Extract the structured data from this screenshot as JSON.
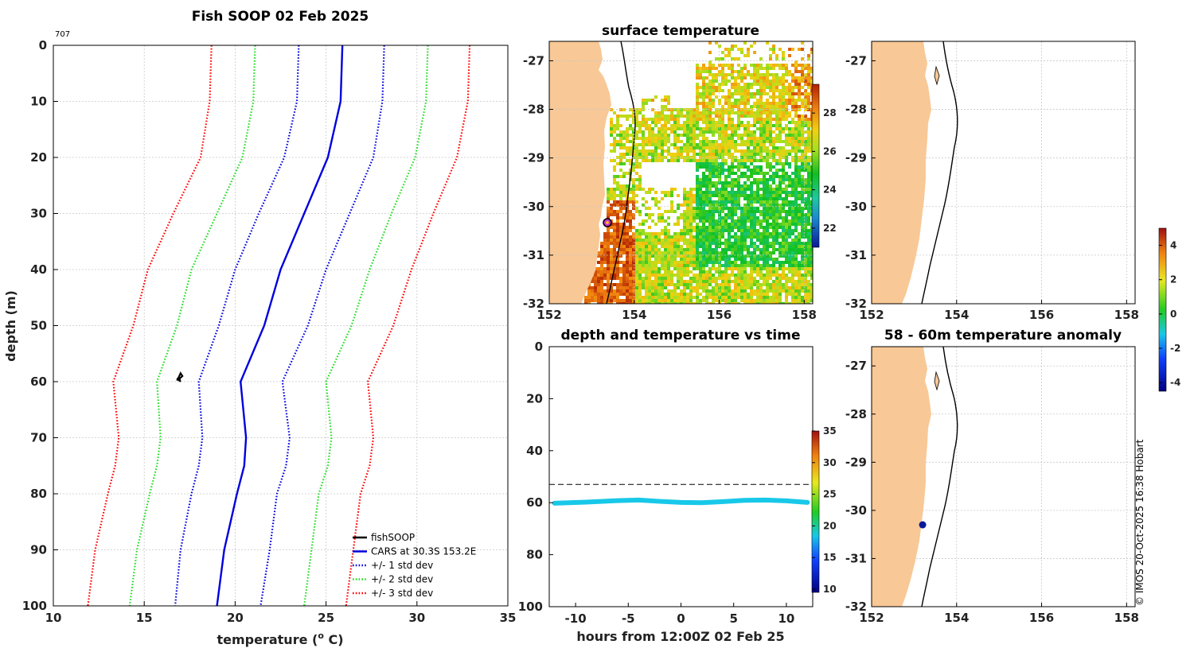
{
  "title": "Fish SOOP 02 Feb 2025",
  "profile_id": "707",
  "credit": "© IMOS 20-Oct-2025 16:38 Hobart",
  "colors": {
    "red": "#ff0000",
    "green": "#22dd22",
    "blue": "#0000dd",
    "black": "#000000",
    "cyan": "#18c8e8",
    "land": "#f8c896",
    "marker": "#cc33cc"
  },
  "chart_data": [
    {
      "id": "profile",
      "type": "line",
      "xlabel": "temperature (",
      "xlabel_sup": "o",
      "xlabel_end": " C)",
      "ylabel": "depth (m)",
      "xlim": [
        10,
        35
      ],
      "ylim": [
        0,
        100
      ],
      "xticks": [
        "10",
        "15",
        "20",
        "25",
        "30",
        "35"
      ],
      "yticks": [
        "0",
        "10",
        "20",
        "30",
        "40",
        "50",
        "60",
        "70",
        "80",
        "90",
        "100"
      ],
      "depths": [
        0,
        10,
        20,
        30,
        40,
        50,
        60,
        70,
        75,
        80,
        90,
        100
      ],
      "series": [
        {
          "name": "CARS at 30.3S 153.2E",
          "style": "solid",
          "color": "#0000dd",
          "values": [
            25.9,
            25.8,
            25.1,
            23.8,
            22.5,
            21.6,
            20.3,
            20.6,
            20.5,
            20.1,
            19.4,
            19.0
          ]
        },
        {
          "name": "+/- 1 std dev",
          "style": "dotted",
          "color": "#0000dd",
          "values": [
            28.2,
            28.1,
            27.6,
            26.3,
            25.0,
            24.0,
            22.6,
            23.0,
            22.8,
            22.3,
            21.9,
            21.4
          ]
        },
        {
          "name": "+/- 1 std dev",
          "style": "dotted",
          "color": "#0000dd",
          "values": [
            23.5,
            23.4,
            22.7,
            21.3,
            20.0,
            19.1,
            18.0,
            18.2,
            18.0,
            17.6,
            17.0,
            16.7
          ]
        },
        {
          "name": "+/- 2 std dev",
          "style": "dotted",
          "color": "#22dd22",
          "values": [
            30.6,
            30.5,
            29.9,
            28.6,
            27.4,
            26.4,
            25.0,
            25.3,
            25.1,
            24.6,
            24.2,
            23.8
          ]
        },
        {
          "name": "+/- 2 std dev",
          "style": "dotted",
          "color": "#22dd22",
          "values": [
            21.1,
            21.0,
            20.4,
            19.0,
            17.6,
            16.8,
            15.7,
            15.9,
            15.7,
            15.3,
            14.6,
            14.2
          ]
        },
        {
          "name": "+/- 3 std dev",
          "style": "dotted",
          "color": "#ff0000",
          "values": [
            32.9,
            32.8,
            32.2,
            30.9,
            29.7,
            28.7,
            27.3,
            27.6,
            27.4,
            26.9,
            26.5,
            26.1
          ]
        },
        {
          "name": "+/- 3 std dev",
          "style": "dotted",
          "color": "#ff0000",
          "values": [
            18.7,
            18.6,
            18.1,
            16.6,
            15.2,
            14.4,
            13.3,
            13.6,
            13.4,
            13.0,
            12.3,
            11.9
          ]
        }
      ],
      "fishsoop": {
        "name": "fishSOOP",
        "temps": [
          16.8,
          16.9,
          17.0,
          17.1,
          16.9,
          17.0,
          16.8,
          17.0
        ],
        "depths": [
          59.8,
          59.2,
          58.5,
          59.0,
          59.6,
          60.0,
          59.4,
          59.8
        ]
      },
      "legend": [
        "fishSOOP",
        "CARS at 30.3S 153.2E",
        "+/- 1 std dev",
        "+/- 2 std dev",
        "+/- 3 std dev"
      ]
    },
    {
      "id": "surface_map",
      "type": "heatmap",
      "title": "surface temperature",
      "xlim": [
        152,
        158.2
      ],
      "ylim": [
        -32,
        -26.6
      ],
      "xticks": [
        "152",
        "154",
        "156",
        "158"
      ],
      "yticks": [
        "-27",
        "-28",
        "-29",
        "-30",
        "-31",
        "-32"
      ],
      "colorbar": {
        "min": 21,
        "max": 29.5,
        "ticks": [
          "22",
          "24",
          "26",
          "28"
        ]
      },
      "station": {
        "lon": 153.25,
        "lat": -30.3
      }
    },
    {
      "id": "time_series",
      "type": "scatter",
      "title": "depth and temperature vs time",
      "xlabel": "hours from 12:00Z 02 Feb 25",
      "xlim": [
        -12.5,
        12.5
      ],
      "ylim": [
        0,
        100
      ],
      "xticks": [
        "-10",
        "-5",
        "0",
        "5",
        "10"
      ],
      "yticks": [
        "0",
        "20",
        "40",
        "60",
        "80",
        "100"
      ],
      "dashed_depth": 53,
      "depth_curve": [
        [
          -12,
          60.2
        ],
        [
          -9,
          59.8
        ],
        [
          -6,
          59.2
        ],
        [
          -4,
          59.0
        ],
        [
          -2,
          59.5
        ],
        [
          0,
          59.9
        ],
        [
          2,
          60.0
        ],
        [
          4,
          59.6
        ],
        [
          6,
          59.1
        ],
        [
          8,
          59.0
        ],
        [
          10,
          59.3
        ],
        [
          12,
          59.9
        ]
      ],
      "colorbar": {
        "min": 9.5,
        "max": 35,
        "ticks": [
          "10",
          "15",
          "20",
          "25",
          "30",
          "35"
        ]
      }
    },
    {
      "id": "top_right_map",
      "type": "heatmap",
      "xlim": [
        152,
        158.2
      ],
      "ylim": [
        -32,
        -26.6
      ],
      "xticks": [
        "152",
        "154",
        "156",
        "158"
      ],
      "yticks": [
        "-27",
        "-28",
        "-29",
        "-30",
        "-31",
        "-32"
      ]
    },
    {
      "id": "anomaly_map",
      "type": "scatter",
      "title": "58 - 60m temperature anomaly",
      "xlim": [
        152,
        158.2
      ],
      "ylim": [
        -32,
        -26.6
      ],
      "xticks": [
        "152",
        "154",
        "156",
        "158"
      ],
      "yticks": [
        "-27",
        "-28",
        "-29",
        "-30",
        "-31",
        "-32"
      ],
      "point": {
        "lon": 153.2,
        "lat": -30.3
      },
      "colorbar": {
        "min": -4.5,
        "max": 5,
        "ticks": [
          "-4",
          "-2",
          "0",
          "2",
          "4"
        ]
      }
    }
  ]
}
